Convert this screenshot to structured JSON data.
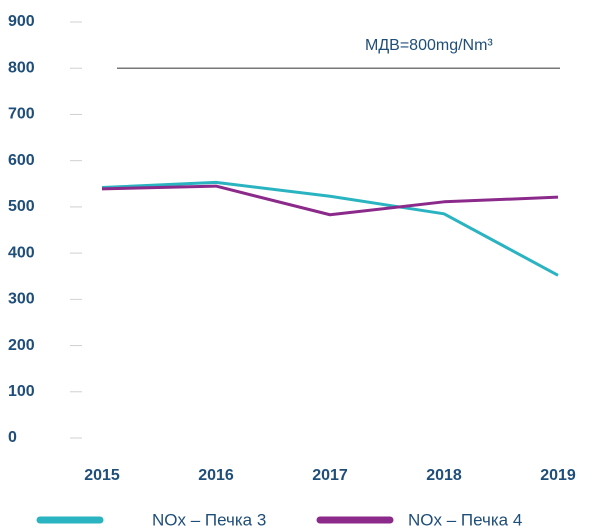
{
  "chart_data": {
    "type": "line",
    "categories": [
      "2015",
      "2016",
      "2017",
      "2018",
      "2019"
    ],
    "series": [
      {
        "name": "NOx – Печка 3",
        "color": "#2ab3c0",
        "values": [
          542,
          553,
          523,
          485,
          352
        ]
      },
      {
        "name": "NOx – Печка 4",
        "color": "#8b2a8b",
        "values": [
          539,
          545,
          483,
          511,
          521
        ]
      }
    ],
    "reference": {
      "value": 800,
      "label": "МДВ=800mg/Nm³",
      "color": "#777777"
    },
    "ylim": [
      0,
      900
    ],
    "yticks": [
      0,
      100,
      200,
      300,
      400,
      500,
      600,
      700,
      800,
      900
    ],
    "legend": "bottom"
  }
}
